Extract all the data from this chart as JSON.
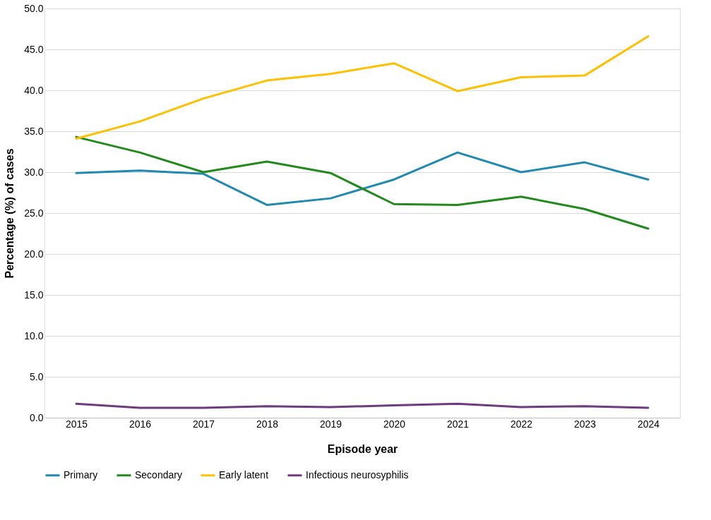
{
  "chart_data": {
    "type": "line",
    "xlabel": "Episode year",
    "ylabel": "Percentage (%) of cases",
    "categories": [
      "2015",
      "2016",
      "2017",
      "2018",
      "2019",
      "2020",
      "2021",
      "2022",
      "2023",
      "2024"
    ],
    "series": [
      {
        "name": "Primary",
        "color": "#2188b0",
        "values": [
          29.9,
          30.2,
          29.8,
          26.0,
          26.8,
          29.1,
          32.4,
          30.0,
          31.2,
          29.1
        ]
      },
      {
        "name": "Secondary",
        "color": "#22891c",
        "values": [
          34.3,
          32.4,
          30.0,
          31.3,
          29.9,
          26.1,
          26.0,
          27.0,
          25.5,
          23.1
        ]
      },
      {
        "name": "Early latent",
        "color": "#ffc000",
        "values": [
          34.1,
          36.2,
          39.0,
          41.2,
          42.0,
          43.3,
          39.9,
          41.6,
          41.8,
          46.6
        ]
      },
      {
        "name": "Infectious neurosyphilis",
        "color": "#6f3a7e",
        "values": [
          1.7,
          1.2,
          1.2,
          1.4,
          1.3,
          1.5,
          1.7,
          1.3,
          1.4,
          1.2
        ]
      }
    ],
    "ylim": [
      0,
      50
    ],
    "yticks": [
      {
        "value": 0,
        "label": "0.0"
      },
      {
        "value": 5,
        "label": "5.0"
      },
      {
        "value": 10,
        "label": "10.0"
      },
      {
        "value": 15,
        "label": "15.0"
      },
      {
        "value": 20,
        "label": "20.0"
      },
      {
        "value": 25,
        "label": "25.0"
      },
      {
        "value": 30,
        "label": "30.0"
      },
      {
        "value": 35,
        "label": "35.0"
      },
      {
        "value": 40,
        "label": "40.0"
      },
      {
        "value": 45,
        "label": "45.0"
      },
      {
        "value": 50,
        "label": "50.0"
      }
    ],
    "grid": "y",
    "legend": "bottom",
    "marker": "none",
    "line_style": "solid"
  }
}
